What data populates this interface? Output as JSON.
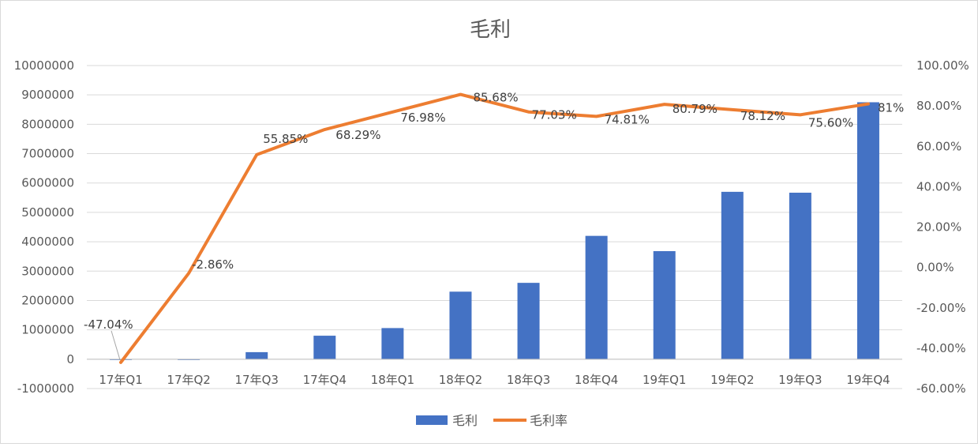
{
  "chart_data": {
    "type": "bar",
    "title": "毛利",
    "xlabel": "",
    "ylabel": "",
    "categories": [
      "17年Q1",
      "17年Q2",
      "17年Q3",
      "17年Q4",
      "18年Q1",
      "18年Q2",
      "18年Q3",
      "18年Q4",
      "19年Q1",
      "19年Q2",
      "19年Q3",
      "19年Q4"
    ],
    "series": [
      {
        "name": "毛利",
        "type": "bar",
        "axis": "left",
        "color": "#4472C4",
        "values": [
          -20000,
          -5000,
          240000,
          800000,
          1060000,
          2300000,
          2600000,
          4200000,
          3680000,
          5700000,
          5670000,
          8750000
        ]
      },
      {
        "name": "毛利率",
        "type": "line",
        "axis": "right",
        "color": "#ED7D31",
        "values": [
          -47.04,
          -2.86,
          55.85,
          68.29,
          76.98,
          85.68,
          77.03,
          74.81,
          80.79,
          78.12,
          75.6,
          81
        ],
        "labels": [
          "-47.04%",
          "-2.86%",
          "55.85%",
          "68.29%",
          "76.98%",
          "85.68%",
          "77.03%",
          "74.81%",
          "80.79%",
          "78.12%",
          "75.60%",
          "81%"
        ]
      }
    ],
    "y_left": {
      "lim": [
        -1000000,
        10000000
      ],
      "ticks": [
        -1000000,
        0,
        1000000,
        2000000,
        3000000,
        4000000,
        5000000,
        6000000,
        7000000,
        8000000,
        9000000,
        10000000
      ],
      "tick_labels": [
        "-1000000",
        "0",
        "1000000",
        "2000000",
        "3000000",
        "4000000",
        "5000000",
        "6000000",
        "7000000",
        "8000000",
        "9000000",
        "10000000"
      ]
    },
    "y_right": {
      "lim": [
        -60,
        100
      ],
      "ticks": [
        -60,
        -40,
        -20,
        0,
        20,
        40,
        60,
        80,
        100
      ],
      "tick_labels": [
        "-60.00%",
        "-40.00%",
        "-20.00%",
        "0.00%",
        "20.00%",
        "40.00%",
        "60.00%",
        "80.00%",
        "100.00%"
      ]
    },
    "grid": true,
    "legend_position": "bottom",
    "legend": [
      "毛利",
      "毛利率"
    ]
  }
}
